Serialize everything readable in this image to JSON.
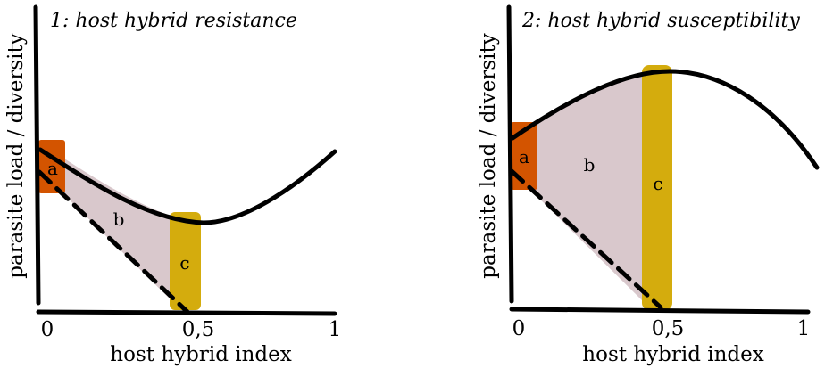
{
  "panels": [
    {
      "title": "1: host hybrid resistance",
      "ylabel": "parasite load / diversity",
      "xlabel": "host hybrid index",
      "ticks": [
        "0",
        "0,5",
        "1"
      ],
      "regions": [
        "a",
        "b",
        "c"
      ]
    },
    {
      "title": "2: host hybrid susceptibility",
      "ylabel": "parasite load / diversity",
      "xlabel": "host hybrid index",
      "ticks": [
        "0",
        "0,5",
        "1"
      ],
      "regions": [
        "a",
        "b",
        "c"
      ]
    }
  ],
  "colors": {
    "region_a": "#d35400",
    "region_b": "#d9c8cc",
    "region_c": "#d4ac0d",
    "line": "#000000"
  }
}
